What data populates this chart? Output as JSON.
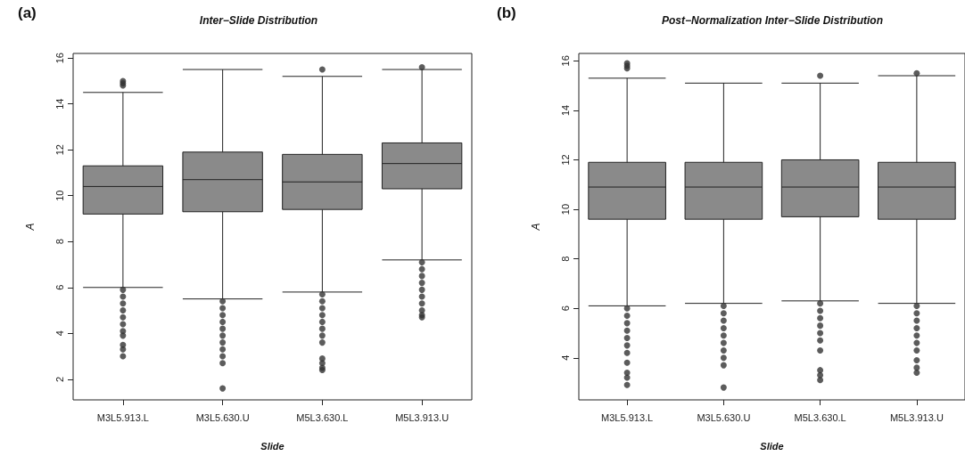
{
  "chart_data": [
    {
      "type": "box",
      "title": "Inter−Slide Distribution",
      "annotations": [
        "(a)"
      ],
      "xlabel": "Slide",
      "ylabel": "A",
      "categories": [
        "M3L5.913.L",
        "M3L5.630.U",
        "M5L3.630.L",
        "M5L3.913.U"
      ],
      "color": "#8a8a8a",
      "ylim": [
        1.1,
        16.2
      ],
      "yticks": [
        2,
        4,
        6,
        8,
        10,
        12,
        14,
        16
      ],
      "grid": false,
      "boxes": [
        {
          "low": 6.0,
          "q1": 9.2,
          "median": 10.4,
          "q3": 11.3,
          "high": 14.5,
          "outliers": [
            15.0,
            14.9,
            14.8,
            5.9,
            5.6,
            5.3,
            5.0,
            4.7,
            4.4,
            4.1,
            3.9,
            3.5,
            3.3,
            3.0
          ]
        },
        {
          "low": 5.5,
          "q1": 9.3,
          "median": 10.7,
          "q3": 11.9,
          "high": 15.5,
          "outliers": [
            5.4,
            5.1,
            4.8,
            4.5,
            4.2,
            3.9,
            3.6,
            3.3,
            3.0,
            2.7,
            1.6
          ]
        },
        {
          "low": 5.8,
          "q1": 9.4,
          "median": 10.6,
          "q3": 11.8,
          "high": 15.2,
          "outliers": [
            15.5,
            5.7,
            5.4,
            5.1,
            4.8,
            4.5,
            4.2,
            3.9,
            3.6,
            2.9,
            2.7,
            2.5,
            2.4
          ]
        },
        {
          "low": 7.2,
          "q1": 10.3,
          "median": 11.4,
          "q3": 12.3,
          "high": 15.5,
          "outliers": [
            15.6,
            7.1,
            6.8,
            6.5,
            6.2,
            5.9,
            5.6,
            5.3,
            5.0,
            4.8,
            4.7
          ]
        }
      ]
    },
    {
      "type": "box",
      "title": "Post−Normalization Inter−Slide Distribution",
      "annotations": [
        "(b)"
      ],
      "xlabel": "Slide",
      "ylabel": "A",
      "categories": [
        "M3L5.913.L",
        "M3L5.630.U",
        "M5L3.630.L",
        "M5L3.913.U"
      ],
      "color": "#8a8a8a",
      "ylim": [
        2.3,
        16.3
      ],
      "yticks": [
        4,
        6,
        8,
        10,
        12,
        14,
        16
      ],
      "grid": false,
      "boxes": [
        {
          "low": 6.1,
          "q1": 9.6,
          "median": 10.9,
          "q3": 11.9,
          "high": 15.3,
          "outliers": [
            15.9,
            15.8,
            15.7,
            6.0,
            5.7,
            5.4,
            5.1,
            4.8,
            4.5,
            4.2,
            3.8,
            3.4,
            3.2,
            2.9
          ]
        },
        {
          "low": 6.2,
          "q1": 9.6,
          "median": 10.9,
          "q3": 11.9,
          "high": 15.1,
          "outliers": [
            6.1,
            5.8,
            5.5,
            5.2,
            4.9,
            4.6,
            4.3,
            4.0,
            3.7,
            2.8
          ]
        },
        {
          "low": 6.3,
          "q1": 9.7,
          "median": 10.9,
          "q3": 12.0,
          "high": 15.1,
          "outliers": [
            15.4,
            6.2,
            5.9,
            5.6,
            5.3,
            5.0,
            4.7,
            4.3,
            3.5,
            3.3,
            3.1
          ]
        },
        {
          "low": 6.2,
          "q1": 9.6,
          "median": 10.9,
          "q3": 11.9,
          "high": 15.4,
          "outliers": [
            15.5,
            6.1,
            5.8,
            5.5,
            5.2,
            4.9,
            4.6,
            4.3,
            3.9,
            3.6,
            3.4
          ]
        }
      ]
    }
  ]
}
